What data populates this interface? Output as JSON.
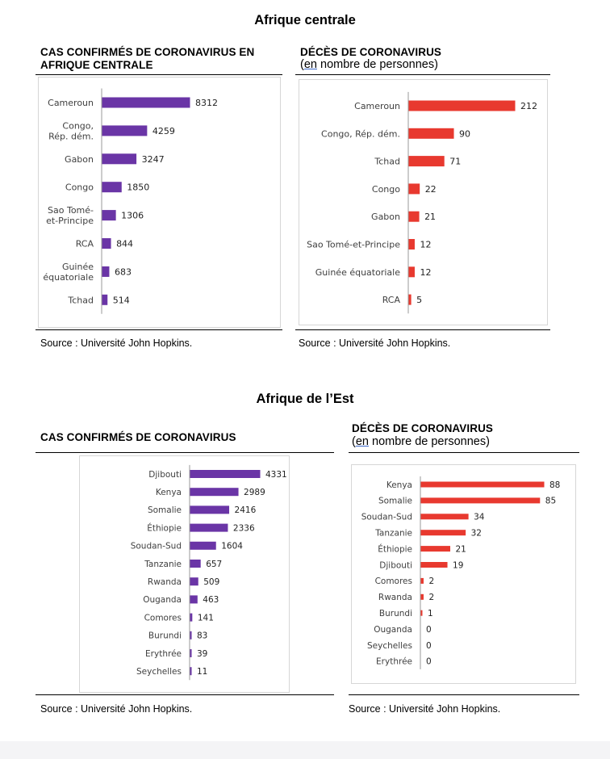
{
  "page": {
    "top_heading": "Afrique centrale",
    "bottom_heading": "Afrique de l’Est"
  },
  "panels": {
    "central_cases": {
      "title_line1": "CAS CONFIRMÉS DE CORONAVIRUS EN",
      "title_line2": "AFRIQUE CENTRALE",
      "source": "Source : Université John Hopkins."
    },
    "central_deaths": {
      "title": "DÉCÈS DE CORONAVIRUS",
      "subtitle_underlined": "en",
      "subtitle_rest": " nombre de personnes)",
      "subtitle_open": "(",
      "source": "Source :  Université John Hopkins."
    },
    "east_cases": {
      "title": "CAS CONFIRMÉS DE CORONAVIRUS",
      "source": "Source : Université John Hopkins."
    },
    "east_deaths": {
      "title": "DÉCÈS DE CORONAVIRUS",
      "subtitle_underlined": "en",
      "subtitle_rest": " nombre de personnes)",
      "subtitle_open": "(",
      "source": "Source :  Université John Hopkins."
    }
  },
  "colors": {
    "purple": "#6a35a6",
    "red": "#e8392f",
    "axis": "#9a9a9a",
    "label": "#404040"
  },
  "chart_data": [
    {
      "id": "central_cases",
      "type": "bar",
      "orientation": "horizontal",
      "color": "#6a35a6",
      "categories": [
        [
          "Cameroun"
        ],
        [
          "Congo,",
          "Rép. dém."
        ],
        [
          "Gabon"
        ],
        [
          "Congo"
        ],
        [
          "Sao Tomé-",
          "et-Principe"
        ],
        [
          "RCA"
        ],
        [
          "Guinée",
          "équatoriale"
        ],
        [
          "Tchad"
        ]
      ],
      "values": [
        8312,
        4259,
        3247,
        1850,
        1306,
        844,
        683,
        514
      ],
      "xlim": [
        0,
        8312
      ]
    },
    {
      "id": "central_deaths",
      "type": "bar",
      "orientation": "horizontal",
      "color": "#e8392f",
      "categories": [
        [
          "Cameroun"
        ],
        [
          "Congo, Rép. dém."
        ],
        [
          "Tchad"
        ],
        [
          "Congo"
        ],
        [
          "Gabon"
        ],
        [
          "Sao Tomé-et-Principe"
        ],
        [
          "Guinée équatoriale"
        ],
        [
          "RCA"
        ]
      ],
      "values": [
        212,
        90,
        71,
        22,
        21,
        12,
        12,
        5
      ],
      "xlim": [
        0,
        212
      ]
    },
    {
      "id": "east_cases",
      "type": "bar",
      "orientation": "horizontal",
      "color": "#6a35a6",
      "categories": [
        [
          "Djibouti"
        ],
        [
          "Kenya"
        ],
        [
          "Somalie"
        ],
        [
          "Éthiopie"
        ],
        [
          "Soudan-Sud"
        ],
        [
          "Tanzanie"
        ],
        [
          "Rwanda"
        ],
        [
          "Ouganda"
        ],
        [
          "Comores"
        ],
        [
          "Burundi"
        ],
        [
          "Erythrée"
        ],
        [
          "Seychelles"
        ]
      ],
      "values": [
        4331,
        2989,
        2416,
        2336,
        1604,
        657,
        509,
        463,
        141,
        83,
        39,
        11
      ],
      "xlim": [
        0,
        4331
      ]
    },
    {
      "id": "east_deaths",
      "type": "bar",
      "orientation": "horizontal",
      "color": "#e8392f",
      "categories": [
        [
          "Kenya"
        ],
        [
          "Somalie"
        ],
        [
          "Soudan-Sud"
        ],
        [
          "Tanzanie"
        ],
        [
          "Éthiopie"
        ],
        [
          "Djibouti"
        ],
        [
          "Comores"
        ],
        [
          "Rwanda"
        ],
        [
          "Burundi"
        ],
        [
          "Ouganda"
        ],
        [
          "Seychelles"
        ],
        [
          "Erythrée"
        ]
      ],
      "values": [
        88,
        85,
        34,
        32,
        21,
        19,
        2,
        2,
        1,
        0,
        0,
        0
      ],
      "xlim": [
        0,
        88
      ]
    }
  ]
}
